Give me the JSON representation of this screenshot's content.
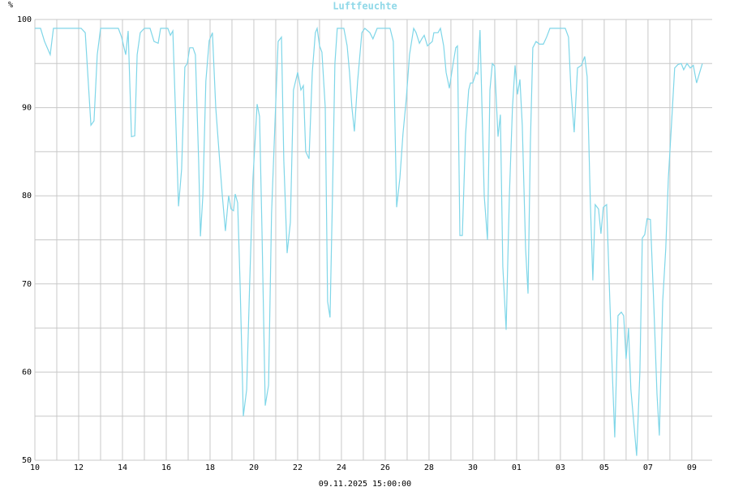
{
  "chart_data": {
    "type": "line",
    "title": "Luftfeuchte",
    "y_unit": "%",
    "footer": "09.11.2025 15:00:00",
    "grid": true,
    "xlim": [
      0,
      30.93
    ],
    "ylim": [
      50,
      100
    ],
    "yticks": [
      50,
      60,
      70,
      80,
      90,
      100
    ],
    "minor_yticks": [
      55,
      65,
      75,
      85,
      95
    ],
    "xticks": [
      {
        "value": 0,
        "label": "10"
      },
      {
        "value": 2,
        "label": "12"
      },
      {
        "value": 4,
        "label": "14"
      },
      {
        "value": 6,
        "label": "16"
      },
      {
        "value": 8,
        "label": "18"
      },
      {
        "value": 10,
        "label": "20"
      },
      {
        "value": 12,
        "label": "22"
      },
      {
        "value": 14,
        "label": "24"
      },
      {
        "value": 16,
        "label": "26"
      },
      {
        "value": 18,
        "label": "28"
      },
      {
        "value": 20,
        "label": "30"
      },
      {
        "value": 22,
        "label": "01"
      },
      {
        "value": 24,
        "label": "03"
      },
      {
        "value": 26,
        "label": "05"
      },
      {
        "value": 28,
        "label": "07"
      },
      {
        "value": 30,
        "label": "09"
      }
    ],
    "minor_xticks": [
      1,
      3,
      5,
      7,
      9,
      11,
      13,
      15,
      17,
      19,
      21,
      23,
      25,
      27,
      29
    ],
    "series": [
      {
        "color": "#7fd6e8",
        "x": [
          0,
          0.26,
          0.44,
          0.7,
          0.85,
          2.11,
          2.3,
          2.56,
          2.7,
          2.85,
          3.0,
          3.81,
          3.96,
          4.15,
          4.26,
          4.41,
          4.56,
          4.67,
          4.81,
          5.0,
          5.26,
          5.44,
          5.63,
          5.74,
          6.07,
          6.19,
          6.3,
          6.44,
          6.56,
          6.7,
          6.85,
          6.96,
          7.07,
          7.22,
          7.33,
          7.48,
          7.56,
          7.67,
          7.81,
          7.96,
          8.11,
          8.26,
          8.41,
          8.56,
          8.7,
          8.85,
          8.96,
          9.07,
          9.15,
          9.26,
          9.37,
          9.52,
          9.67,
          9.81,
          9.96,
          10.15,
          10.26,
          10.37,
          10.52,
          10.67,
          10.81,
          10.96,
          11.11,
          11.26,
          11.37,
          11.52,
          11.67,
          11.81,
          12.0,
          12.15,
          12.26,
          12.37,
          12.52,
          12.67,
          12.81,
          12.89,
          13.0,
          13.11,
          13.26,
          13.37,
          13.48,
          13.59,
          13.7,
          13.81,
          14.11,
          14.26,
          14.37,
          14.48,
          14.59,
          14.74,
          14.93,
          15.07,
          15.3,
          15.44,
          15.63,
          15.81,
          16.22,
          16.37,
          16.52,
          16.67,
          16.81,
          16.96,
          17.11,
          17.3,
          17.41,
          17.56,
          17.67,
          17.78,
          17.93,
          18.15,
          18.22,
          18.41,
          18.52,
          18.67,
          18.78,
          18.93,
          19.07,
          19.22,
          19.3,
          19.41,
          19.52,
          19.67,
          19.81,
          19.89,
          20.0,
          20.15,
          20.22,
          20.33,
          20.52,
          20.67,
          20.78,
          20.89,
          21.0,
          21.15,
          21.26,
          21.37,
          21.52,
          21.67,
          21.81,
          21.93,
          22.04,
          22.15,
          22.26,
          22.41,
          22.52,
          22.63,
          22.74,
          22.89,
          23.04,
          23.22,
          23.37,
          23.52,
          24.22,
          24.37,
          24.48,
          24.63,
          24.78,
          24.96,
          25.11,
          25.22,
          25.37,
          25.48,
          25.59,
          25.74,
          25.85,
          25.96,
          26.11,
          26.26,
          26.37,
          26.48,
          26.63,
          26.78,
          26.89,
          27.0,
          27.11,
          27.22,
          27.37,
          27.48,
          27.63,
          27.74,
          27.85,
          27.96,
          28.11,
          28.26,
          28.41,
          28.52,
          28.67,
          28.81,
          28.93,
          29.07,
          29.22,
          29.37,
          29.52,
          29.63,
          29.78,
          29.93,
          30.07,
          30.22,
          30.48
        ],
        "values": [
          99,
          99,
          97.5,
          96,
          99,
          99,
          98.5,
          88,
          88.5,
          96,
          99,
          99,
          98,
          96,
          98.7,
          86.7,
          86.8,
          96,
          98.5,
          99,
          99,
          97.5,
          97.3,
          99,
          99,
          98.2,
          98.7,
          88,
          78.8,
          83,
          94.6,
          95,
          96.8,
          96.8,
          96,
          84,
          75.4,
          80,
          93,
          97.6,
          98.5,
          90,
          85,
          80,
          76,
          80,
          78.5,
          78.3,
          80.2,
          79.2,
          70,
          55,
          58,
          70,
          82,
          90.4,
          89,
          76,
          56.2,
          58.5,
          78,
          88,
          97.5,
          98,
          84,
          73.5,
          77,
          92,
          94,
          92,
          92.5,
          85,
          84.2,
          94,
          98.5,
          99,
          97,
          96.3,
          90,
          68,
          66.2,
          80,
          95,
          99,
          99,
          97,
          94,
          90,
          87.3,
          93,
          98.5,
          99,
          98.5,
          97.8,
          99,
          99,
          99,
          97.5,
          78.7,
          82,
          87,
          91,
          96,
          99,
          98.5,
          97.3,
          97.8,
          98.2,
          97,
          97.5,
          98.5,
          98.5,
          99,
          97,
          94,
          92.2,
          94.5,
          96.8,
          97,
          75.5,
          75.5,
          87,
          92,
          92.8,
          92.8,
          94,
          93.8,
          98.8,
          80,
          75,
          92,
          95,
          94.7,
          86.7,
          89.2,
          72,
          64.8,
          80,
          90,
          94.8,
          91.5,
          93.2,
          88,
          74,
          68.9,
          86,
          96.8,
          97.5,
          97.2,
          97.2,
          98,
          99,
          99,
          98,
          92,
          87.2,
          94.5,
          94.8,
          95.8,
          93.5,
          79,
          70.4,
          79,
          78.5,
          75.7,
          78.7,
          79,
          68,
          60,
          52.6,
          66.4,
          66.8,
          66.4,
          61.5,
          65,
          58,
          53.7,
          50.5,
          60,
          75.2,
          75.6,
          77.4,
          77.3,
          68,
          57.5,
          52.8,
          68,
          74,
          82,
          88,
          94.5,
          94.9,
          95,
          94.3,
          95,
          94.5,
          94.8,
          92.8,
          95
        ]
      }
    ]
  }
}
